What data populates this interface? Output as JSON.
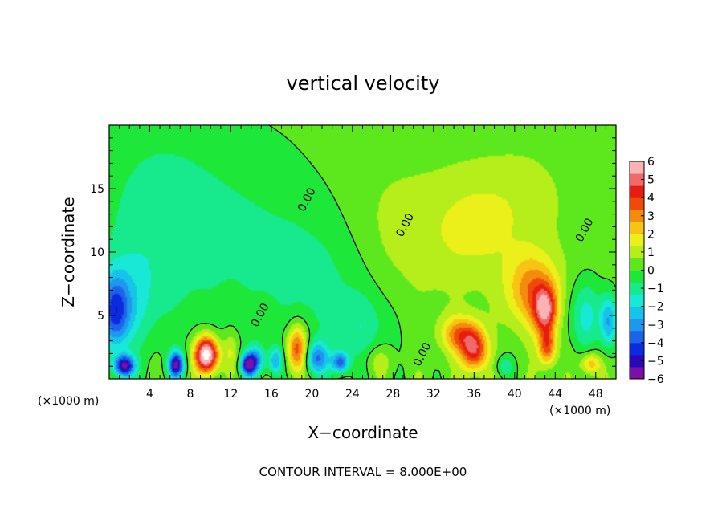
{
  "chart_data": {
    "type": "heatmap",
    "title": "vertical velocity",
    "xlabel": "X−coordinate",
    "ylabel": "Z−coordinate",
    "x_unit_left": "(×1000 m)",
    "x_unit_right": "(×1000 m)",
    "xlim": [
      0,
      50
    ],
    "ylim": [
      0,
      20
    ],
    "x_ticks": [
      4,
      8,
      12,
      16,
      20,
      24,
      28,
      32,
      36,
      40,
      44,
      48
    ],
    "y_ticks": [
      5,
      10,
      15
    ],
    "colorbar": {
      "ticks": [
        6,
        5,
        4,
        3,
        2,
        1,
        0,
        -1,
        -2,
        -3,
        -4,
        -5,
        -6
      ],
      "tick_labels": [
        "6",
        "5",
        "4",
        "3",
        "2",
        "1",
        "0",
        "−1",
        "−2",
        "−3",
        "−4",
        "−5",
        "−6"
      ],
      "range": [
        -6,
        6
      ]
    },
    "contour_labels": [
      {
        "text": "0.00",
        "x": 15.2,
        "y": 4.9
      },
      {
        "text": "0.00",
        "x": 19.8,
        "y": 14.0
      },
      {
        "text": "0.00",
        "x": 29.5,
        "y": 12.0
      },
      {
        "text": "0.00",
        "x": 31.2,
        "y": 1.8
      },
      {
        "text": "0.00",
        "x": 47.2,
        "y": 11.6
      }
    ],
    "features": [
      {
        "x": 9.6,
        "y": 1.9,
        "amp": 7.5,
        "sx": 0.8,
        "sy": 1.0
      },
      {
        "x": 18.5,
        "y": 2.4,
        "amp": 4.0,
        "sx": 0.7,
        "sy": 1.3
      },
      {
        "x": 36.0,
        "y": 2.3,
        "amp": 4.5,
        "sx": 0.9,
        "sy": 1.2
      },
      {
        "x": 34.5,
        "y": 3.5,
        "amp": 3.0,
        "sx": 1.2,
        "sy": 1.0
      },
      {
        "x": 41.8,
        "y": 7.0,
        "amp": 3.0,
        "sx": 1.8,
        "sy": 2.0
      },
      {
        "x": 43.0,
        "y": 5.4,
        "amp": 4.5,
        "sx": 0.8,
        "sy": 1.3
      },
      {
        "x": 43.2,
        "y": 2.5,
        "amp": 3.5,
        "sx": 0.6,
        "sy": 1.0
      },
      {
        "x": 47.5,
        "y": 1.2,
        "amp": 2.5,
        "sx": 0.7,
        "sy": 0.6
      },
      {
        "x": 28.0,
        "y": 10.5,
        "amp": 1.0,
        "sx": 4.0,
        "sy": 4.0
      },
      {
        "x": 36.0,
        "y": 12.0,
        "amp": 1.2,
        "sx": 3.0,
        "sy": 3.0
      },
      {
        "x": 41.0,
        "y": 14.0,
        "amp": 0.6,
        "sx": 3.0,
        "sy": 3.0
      },
      {
        "x": 12.0,
        "y": 2.2,
        "amp": 1.2,
        "sx": 0.5,
        "sy": 1.0
      },
      {
        "x": 26.5,
        "y": 1.5,
        "amp": 1.0,
        "sx": 1.0,
        "sy": 0.8
      },
      {
        "x": 1.5,
        "y": 1.0,
        "amp": -6.0,
        "sx": 0.7,
        "sy": 0.6
      },
      {
        "x": 6.6,
        "y": 1.1,
        "amp": -6.0,
        "sx": 0.5,
        "sy": 0.7
      },
      {
        "x": 13.7,
        "y": 1.1,
        "amp": -5.5,
        "sx": 0.5,
        "sy": 0.6
      },
      {
        "x": 14.5,
        "y": 1.5,
        "amp": -3.0,
        "sx": 0.6,
        "sy": 0.8
      },
      {
        "x": 16.4,
        "y": 1.4,
        "amp": -3.0,
        "sx": 0.5,
        "sy": 0.8
      },
      {
        "x": 20.5,
        "y": 1.6,
        "amp": -3.5,
        "sx": 0.8,
        "sy": 0.9
      },
      {
        "x": 22.8,
        "y": 1.3,
        "amp": -4.0,
        "sx": 0.6,
        "sy": 0.6
      },
      {
        "x": 0.6,
        "y": 5.2,
        "amp": -3.5,
        "sx": 1.0,
        "sy": 2.0
      },
      {
        "x": 1.5,
        "y": 6.0,
        "amp": -1.5,
        "sx": 2.0,
        "sy": 2.5
      },
      {
        "x": 4.0,
        "y": 12.0,
        "amp": -1.2,
        "sx": 4.0,
        "sy": 6.0
      },
      {
        "x": 12.0,
        "y": 12.0,
        "amp": -1.0,
        "sx": 6.0,
        "sy": 6.0
      },
      {
        "x": 22.0,
        "y": 8.0,
        "amp": -1.2,
        "sx": 5.0,
        "sy": 4.0
      },
      {
        "x": 47.0,
        "y": 5.0,
        "amp": -2.0,
        "sx": 1.2,
        "sy": 2.0
      },
      {
        "x": 49.3,
        "y": 4.5,
        "amp": -3.0,
        "sx": 0.6,
        "sy": 1.5
      },
      {
        "x": 25.0,
        "y": 4.0,
        "amp": -1.2,
        "sx": 2.0,
        "sy": 2.0
      },
      {
        "x": 39.0,
        "y": 1.0,
        "amp": -1.5,
        "sx": 0.6,
        "sy": 0.6
      }
    ]
  },
  "footer": {
    "contour_interval": "CONTOUR INTERVAL = 8.000E+00"
  }
}
